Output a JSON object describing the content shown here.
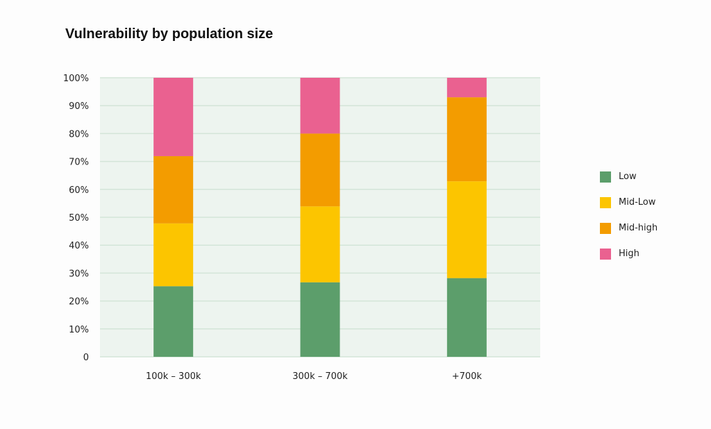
{
  "chart_data": {
    "type": "bar",
    "stacked": true,
    "title": "Vulnerability by population size",
    "xlabel": "",
    "ylabel": "",
    "ylim": [
      0,
      100
    ],
    "yticks": [
      "0",
      "10%",
      "20%",
      "30%",
      "40%",
      "50%",
      "60%",
      "70%",
      "80%",
      "90%",
      "100%"
    ],
    "categories": [
      "100k – 300k",
      "300k – 700k",
      "+700k"
    ],
    "series": [
      {
        "name": "Low",
        "color": "#5c9e6b",
        "values": [
          25.3,
          26.7,
          28.2
        ]
      },
      {
        "name": "Mid-Low",
        "color": "#fcc500",
        "values": [
          22.5,
          27.2,
          34.7
        ]
      },
      {
        "name": "Mid-high",
        "color": "#f39c00",
        "values": [
          24.1,
          26.1,
          30.1
        ]
      },
      {
        "name": "High",
        "color": "#ea6190",
        "values": [
          28.1,
          20.0,
          7.0
        ]
      }
    ],
    "grid": true,
    "legend_position": "right"
  }
}
